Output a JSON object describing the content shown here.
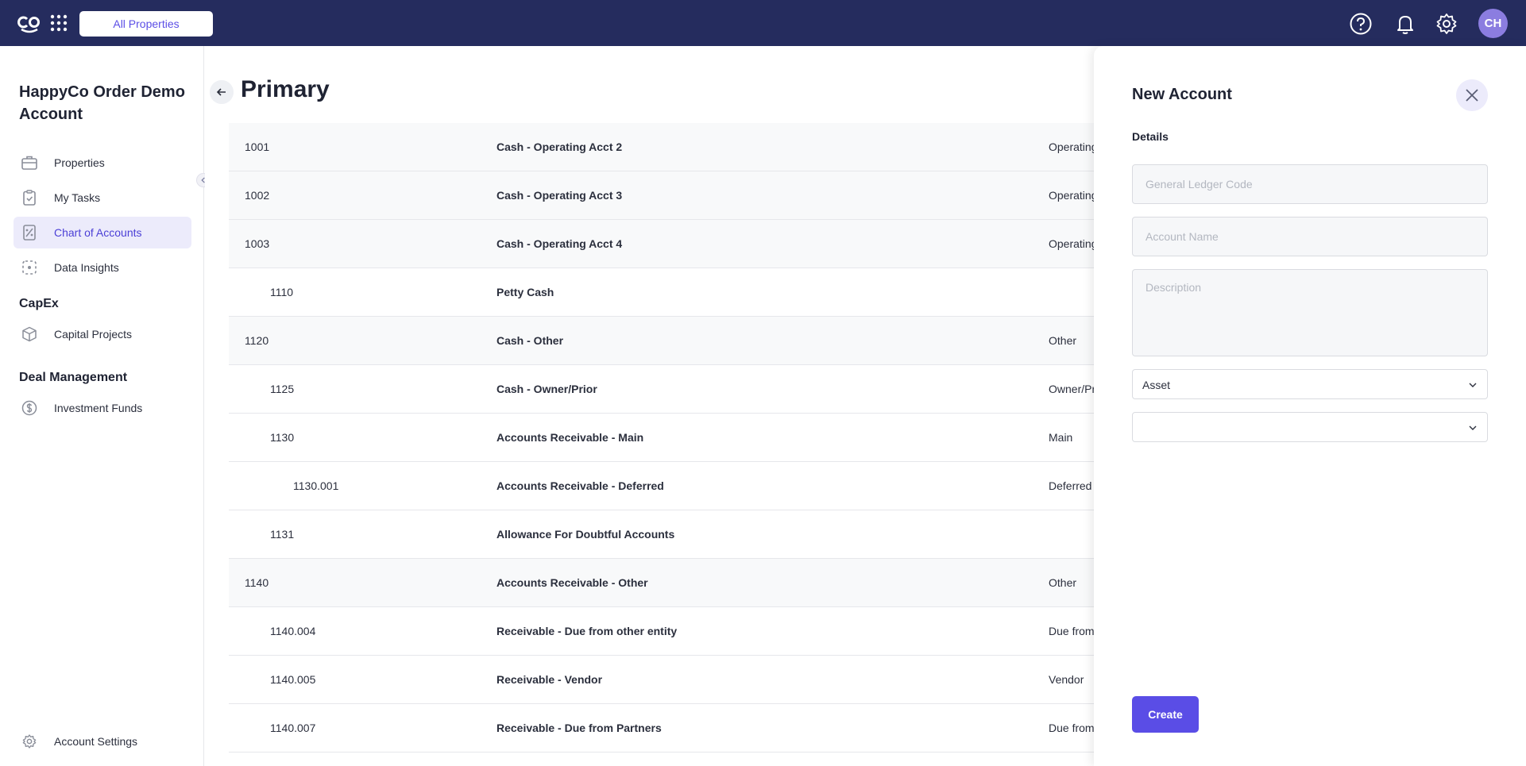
{
  "topbar": {
    "logo_icon": "co-logo",
    "apps_icon": "grid-icon",
    "property_selector": "All Properties",
    "avatar_initials": "CH",
    "icons": [
      "help-icon",
      "bell-icon",
      "gear-icon"
    ]
  },
  "sidebar": {
    "org_title": "HappyCo Order Demo Account",
    "items": [
      {
        "label": "Properties",
        "icon": "briefcase-icon"
      },
      {
        "label": "My Tasks",
        "icon": "clipboard-icon"
      },
      {
        "label": "Chart of Accounts",
        "icon": "ledger-icon",
        "active": true
      },
      {
        "label": "Data Insights",
        "icon": "insights-icon"
      }
    ],
    "capex_heading": "CapEx",
    "capex_items": [
      {
        "label": "Capital Projects",
        "icon": "cube-icon"
      }
    ],
    "deal_heading": "Deal Management",
    "deal_items": [
      {
        "label": "Investment Funds",
        "icon": "dollar-icon"
      }
    ],
    "settings_label": "Account Settings"
  },
  "main": {
    "title": "Primary",
    "rows": [
      {
        "code": "1001",
        "name": "Cash - Operating Acct 2",
        "type": "Operating Account",
        "level": 0
      },
      {
        "code": "1002",
        "name": "Cash - Operating Acct 3",
        "type": "Operating Account",
        "level": 0
      },
      {
        "code": "1003",
        "name": "Cash - Operating Acct 4",
        "type": "Operating Account",
        "level": 0
      },
      {
        "code": "1110",
        "name": "Petty Cash",
        "type": "",
        "level": 1
      },
      {
        "code": "1120",
        "name": "Cash - Other",
        "type": "Other",
        "level": 0
      },
      {
        "code": "1125",
        "name": "Cash - Owner/Prior",
        "type": "Owner/Prior",
        "level": 1
      },
      {
        "code": "1130",
        "name": "Accounts Receivable - Main",
        "type": "Main",
        "level": 1
      },
      {
        "code": "1130.001",
        "name": "Accounts Receivable - Deferred",
        "type": "Deferred",
        "level": 2
      },
      {
        "code": "1131",
        "name": "Allowance For Doubtful Accounts",
        "type": "",
        "level": 1
      },
      {
        "code": "1140",
        "name": "Accounts Receivable - Other",
        "type": "Other",
        "level": 0
      },
      {
        "code": "1140.004",
        "name": "Receivable - Due from other entity",
        "type": "Due from other entity",
        "level": 1
      },
      {
        "code": "1140.005",
        "name": "Receivable - Vendor",
        "type": "Vendor",
        "level": 1
      },
      {
        "code": "1140.007",
        "name": "Receivable - Due from Partners",
        "type": "Due from Partners",
        "level": 1
      }
    ]
  },
  "drawer": {
    "title": "New Account",
    "section": "Details",
    "gl_placeholder": "General Ledger Code",
    "name_placeholder": "Account Name",
    "desc_placeholder": "Description",
    "type_value": "Asset",
    "subtype_value": "",
    "create_label": "Create"
  },
  "colors": {
    "topbar": "#252c5e",
    "accent": "#5a4de6",
    "active_bg": "#ecebfb"
  }
}
